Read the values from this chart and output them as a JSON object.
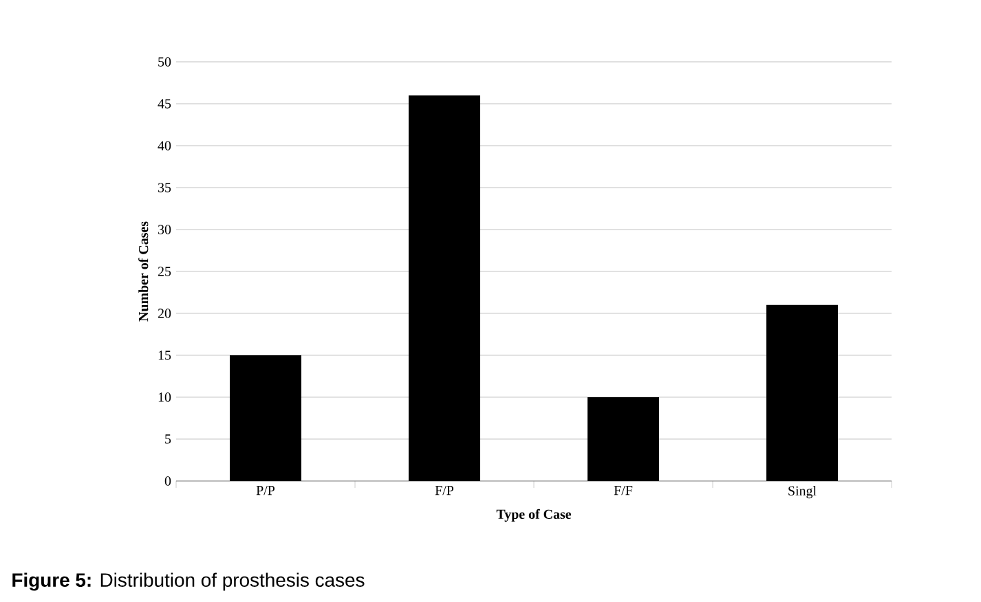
{
  "chart_data": {
    "type": "bar",
    "categories": [
      "P/P",
      "F/P",
      "F/F",
      "Singl"
    ],
    "values": [
      15,
      46,
      10,
      21
    ],
    "color": "#000000",
    "xlabel": "Type of Case",
    "ylabel": "Number of Cases",
    "ylim": [
      0,
      50
    ],
    "yticks": [
      0,
      5,
      10,
      15,
      20,
      25,
      30,
      35,
      40,
      45,
      50
    ],
    "grid": "y",
    "annotations": [
      "**Figure 5:** Distribution of prosthesis cases"
    ]
  }
}
